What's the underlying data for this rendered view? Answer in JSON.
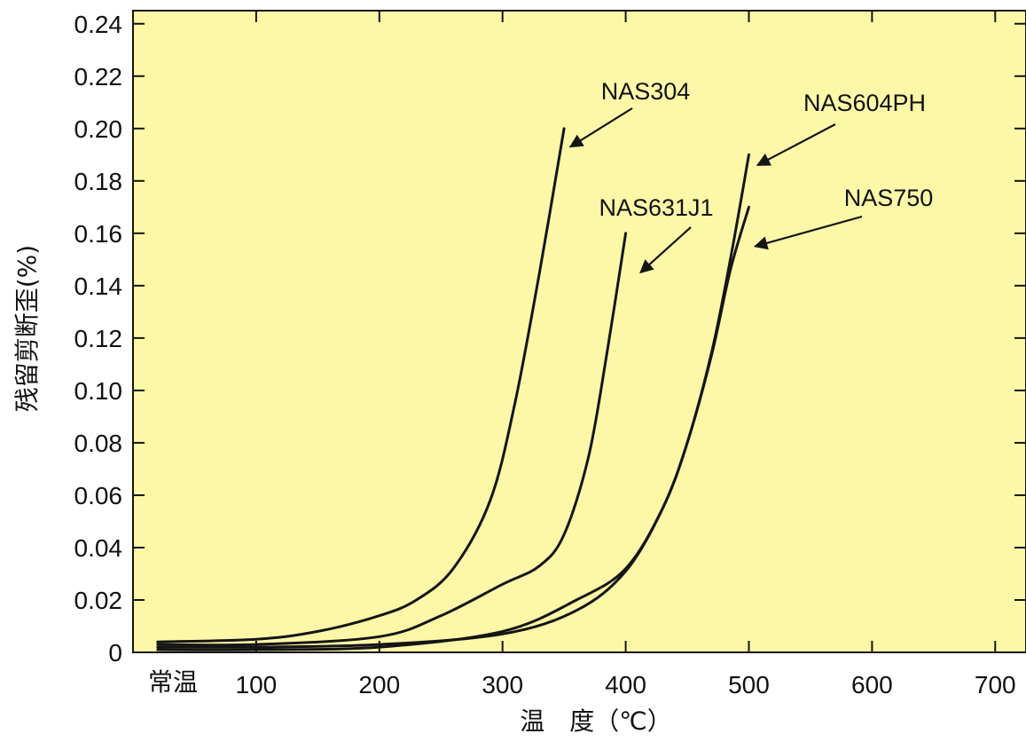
{
  "chart_data": {
    "type": "line",
    "xlabel": "温　度（℃）",
    "ylabel": "残留剪断歪(%)",
    "xlim": [
      0,
      725
    ],
    "ylim": [
      0,
      0.245
    ],
    "x_ticks": [
      {
        "value": 0,
        "label": "常温"
      },
      {
        "value": 100,
        "label": "100"
      },
      {
        "value": 200,
        "label": "200"
      },
      {
        "value": 300,
        "label": "300"
      },
      {
        "value": 400,
        "label": "400"
      },
      {
        "value": 500,
        "label": "500"
      },
      {
        "value": 600,
        "label": "600"
      },
      {
        "value": 700,
        "label": "700"
      }
    ],
    "y_ticks": [
      {
        "value": 0,
        "label": "0"
      },
      {
        "value": 0.02,
        "label": "0.02"
      },
      {
        "value": 0.04,
        "label": "0.04"
      },
      {
        "value": 0.06,
        "label": "0.06"
      },
      {
        "value": 0.08,
        "label": "0.08"
      },
      {
        "value": 0.1,
        "label": "0.10"
      },
      {
        "value": 0.12,
        "label": "0.12"
      },
      {
        "value": 0.14,
        "label": "0.14"
      },
      {
        "value": 0.16,
        "label": "0.16"
      },
      {
        "value": 0.18,
        "label": "0.18"
      },
      {
        "value": 0.2,
        "label": "0.20"
      },
      {
        "value": 0.22,
        "label": "0.22"
      },
      {
        "value": 0.24,
        "label": "0.24"
      }
    ],
    "grid": false,
    "background_color": "#fdf8a8",
    "line_color": "#151515",
    "series": [
      {
        "name": "NAS304",
        "x": [
          20,
          100,
          150,
          200,
          230,
          260,
          290,
          310,
          330,
          350
        ],
        "y": [
          0.004,
          0.005,
          0.008,
          0.014,
          0.02,
          0.032,
          0.058,
          0.095,
          0.145,
          0.2
        ]
      },
      {
        "name": "NAS631J1",
        "x": [
          20,
          100,
          200,
          250,
          300,
          330,
          350,
          370,
          385,
          400
        ],
        "y": [
          0.003,
          0.003,
          0.006,
          0.014,
          0.026,
          0.033,
          0.045,
          0.075,
          0.115,
          0.16
        ]
      },
      {
        "name": "NAS604PH",
        "x": [
          20,
          100,
          200,
          300,
          360,
          400,
          430,
          450,
          470,
          485,
          500
        ],
        "y": [
          0.002,
          0.002,
          0.003,
          0.007,
          0.016,
          0.031,
          0.055,
          0.08,
          0.115,
          0.15,
          0.19
        ]
      },
      {
        "name": "NAS750",
        "x": [
          20,
          100,
          200,
          300,
          360,
          400,
          430,
          450,
          470,
          485,
          500
        ],
        "y": [
          0.001,
          0.001,
          0.002,
          0.008,
          0.02,
          0.032,
          0.055,
          0.08,
          0.114,
          0.146,
          0.17
        ]
      }
    ],
    "annotations": [
      {
        "series": "NAS304",
        "text": "NAS304",
        "tip": [
          355,
          0.193
        ]
      },
      {
        "series": "NAS631J1",
        "text": "NAS631J1",
        "tip": [
          412,
          0.145
        ]
      },
      {
        "series": "NAS604PH",
        "text": "NAS604PH",
        "tip": [
          507,
          0.186
        ]
      },
      {
        "series": "NAS750",
        "text": "NAS750",
        "tip": [
          505,
          0.155
        ]
      }
    ]
  }
}
